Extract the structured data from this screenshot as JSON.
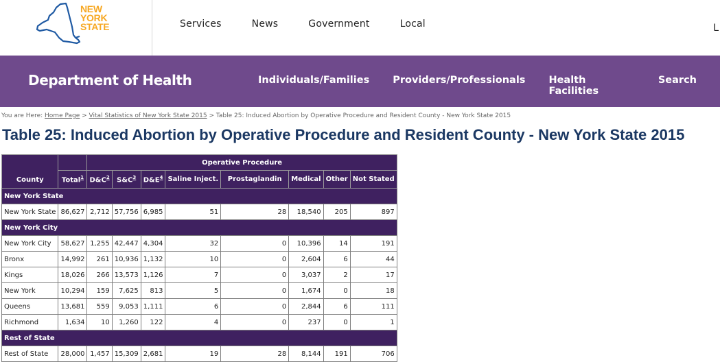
{
  "header": {
    "logo": {
      "line1": "NEW",
      "line2": "YORK",
      "line3": "STATE",
      "color": "#f7a823",
      "outline_color": "#1f5aa3"
    },
    "nav": [
      "Services",
      "News",
      "Government",
      "Local"
    ],
    "right_text": "L"
  },
  "doh": {
    "title": "Department of Health",
    "nav": [
      "Individuals/Families",
      "Providers/Professionals",
      "Health Facilities",
      "Search"
    ],
    "color": "#6f4a8c"
  },
  "breadcrumb": {
    "prefix": "You are Here: ",
    "home": "Home Page",
    "sep1": " > ",
    "vital": "Vital Statistics of New York State 2015",
    "sep2": " > ",
    "current": "Table 25: Induced Abortion by Operative Procedure and Resident County - New York State 2015"
  },
  "page_title": "Table 25: Induced Abortion by Operative Procedure and Resident County - New York State 2015",
  "table": {
    "group_header": "Operative Procedure",
    "columns": {
      "county": "County",
      "total": "Total",
      "total_note": "1",
      "dc": "D&C",
      "dc_note": "2",
      "sc": "S&C",
      "sc_note": "3",
      "de": "D&E",
      "de_note": "4",
      "saline": "Saline Inject.",
      "prosta": "Prostaglandin",
      "medical": "Medical",
      "other": "Other",
      "not_stated": "Not Stated"
    },
    "sections": [
      {
        "title": "New York State",
        "rows": [
          [
            "New York State",
            "86,627",
            "2,712",
            "57,756",
            "6,985",
            "51",
            "28",
            "18,540",
            "205",
            "897"
          ]
        ]
      },
      {
        "title": "New York City",
        "rows": [
          [
            "New York City",
            "58,627",
            "1,255",
            "42,447",
            "4,304",
            "32",
            "0",
            "10,396",
            "14",
            "191"
          ],
          [
            "Bronx",
            "14,992",
            "261",
            "10,936",
            "1,132",
            "10",
            "0",
            "2,604",
            "6",
            "44"
          ],
          [
            "Kings",
            "18,026",
            "266",
            "13,573",
            "1,126",
            "7",
            "0",
            "3,037",
            "2",
            "17"
          ],
          [
            "New York",
            "10,294",
            "159",
            "7,625",
            "813",
            "5",
            "0",
            "1,674",
            "0",
            "18"
          ],
          [
            "Queens",
            "13,681",
            "559",
            "9,053",
            "1,111",
            "6",
            "0",
            "2,844",
            "6",
            "111"
          ],
          [
            "Richmond",
            "1,634",
            "10",
            "1,260",
            "122",
            "4",
            "0",
            "237",
            "0",
            "1"
          ]
        ]
      },
      {
        "title": "Rest of State",
        "rows": [
          [
            "Rest of State",
            "28,000",
            "1,457",
            "15,309",
            "2,681",
            "19",
            "28",
            "8,144",
            "191",
            "706"
          ]
        ]
      }
    ]
  }
}
